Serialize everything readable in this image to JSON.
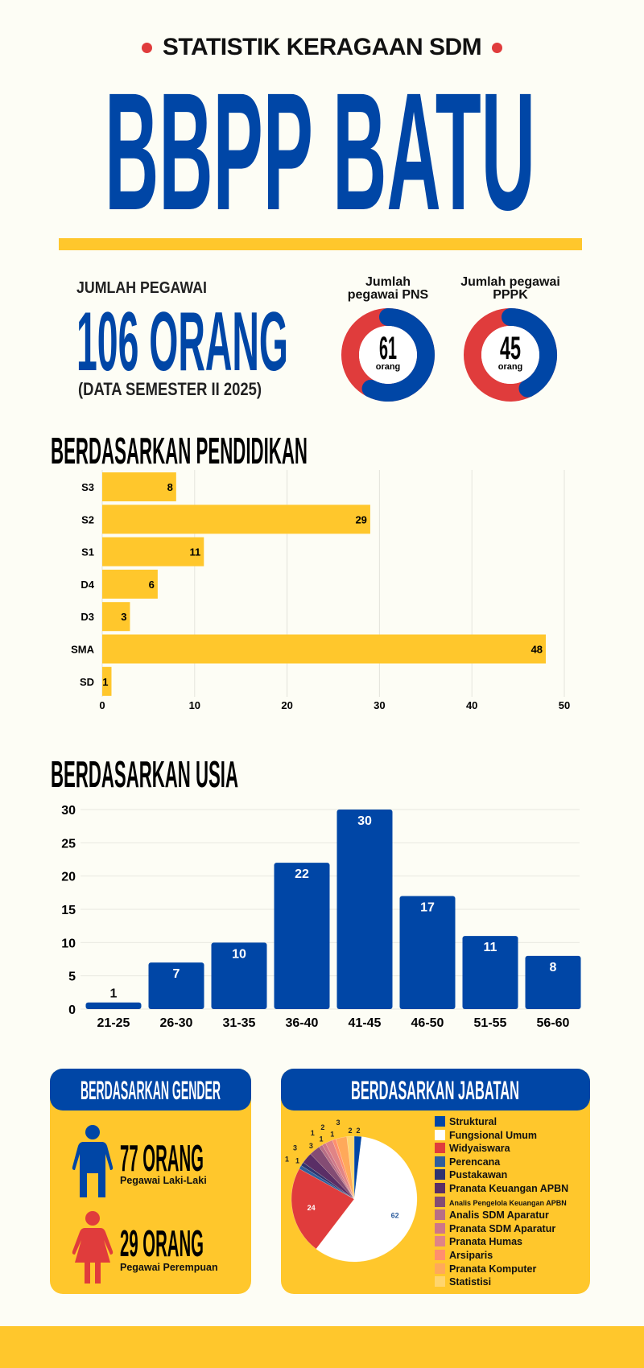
{
  "header": {
    "subtitle": "STATISTIK KERAGAAN SDM",
    "title": "BBPP BATU"
  },
  "summary": {
    "label": "JUMLAH PEGAWAI",
    "total": "106 ORANG",
    "note": "(DATA SEMESTER II 2025)",
    "pns": {
      "label_line1": "Jumlah",
      "label_line2": "pegawai PNS",
      "value": "61",
      "unit": "orang",
      "count": 61,
      "total": 106
    },
    "pppk": {
      "label_line1": "Jumlah pegawai",
      "label_line2": "PPPK",
      "value": "45",
      "unit": "orang",
      "count": 45,
      "total": 106
    }
  },
  "colors": {
    "blue": "#0046A6",
    "yellow": "#FFC72C",
    "red": "#E03C3C",
    "background": "#FDFDF5"
  },
  "gender": {
    "title": "BERDASARKAN GENDER",
    "male": {
      "value": "77 ORANG",
      "label": "Pegawai Laki-Laki",
      "icon": "male-person-icon"
    },
    "female": {
      "value": "29 ORANG",
      "label": "Pegawai Perempuan",
      "icon": "female-person-icon"
    }
  },
  "chart_data": [
    {
      "type": "bar",
      "orientation": "horizontal",
      "title": "BERDASARKAN PENDIDIKAN",
      "categories": [
        "S3",
        "S2",
        "S1",
        "D4",
        "D3",
        "SMA",
        "SD"
      ],
      "values": [
        8,
        29,
        11,
        6,
        3,
        48,
        1
      ],
      "xlim": [
        0,
        50
      ],
      "xticks": [
        0,
        10,
        20,
        30,
        40,
        50
      ],
      "grid": true,
      "color": "#FFC72C"
    },
    {
      "type": "bar",
      "orientation": "vertical",
      "title": "BERDASARKAN USIA",
      "categories": [
        "21-25",
        "26-30",
        "31-35",
        "36-40",
        "41-45",
        "46-50",
        "51-55",
        "56-60"
      ],
      "values": [
        1,
        7,
        10,
        22,
        30,
        17,
        11,
        8
      ],
      "ylim": [
        0,
        30
      ],
      "yticks": [
        0,
        5,
        10,
        15,
        20,
        25,
        30
      ],
      "grid": true,
      "color": "#0046A6"
    },
    {
      "type": "pie",
      "title": "BERDASARKAN JABATAN",
      "legend": "right",
      "categories": [
        "Struktural",
        "Fungsional Umum",
        "Widyaiswara",
        "Perencana",
        "Pustakawan",
        "Pranata Keuangan APBN",
        "Analis Pengelola Keuangan APBN",
        "Analis SDM Aparatur",
        "Pranata SDM Aparatur",
        "Pranata Humas",
        "Arsiparis",
        "Pranata Komputer",
        "Statistisi"
      ],
      "values": [
        2,
        62,
        24,
        1,
        1,
        3,
        3,
        1,
        1,
        2,
        1,
        3,
        2
      ],
      "colors": [
        "#0046A6",
        "#FFFFFF",
        "#E03C3C",
        "#2E5E9E",
        "#2F3470",
        "#5A2E66",
        "#844C74",
        "#B86E86",
        "#CE7688",
        "#E08486",
        "#FF8F6E",
        "#FFA95A",
        "#FFD56E"
      ]
    }
  ]
}
